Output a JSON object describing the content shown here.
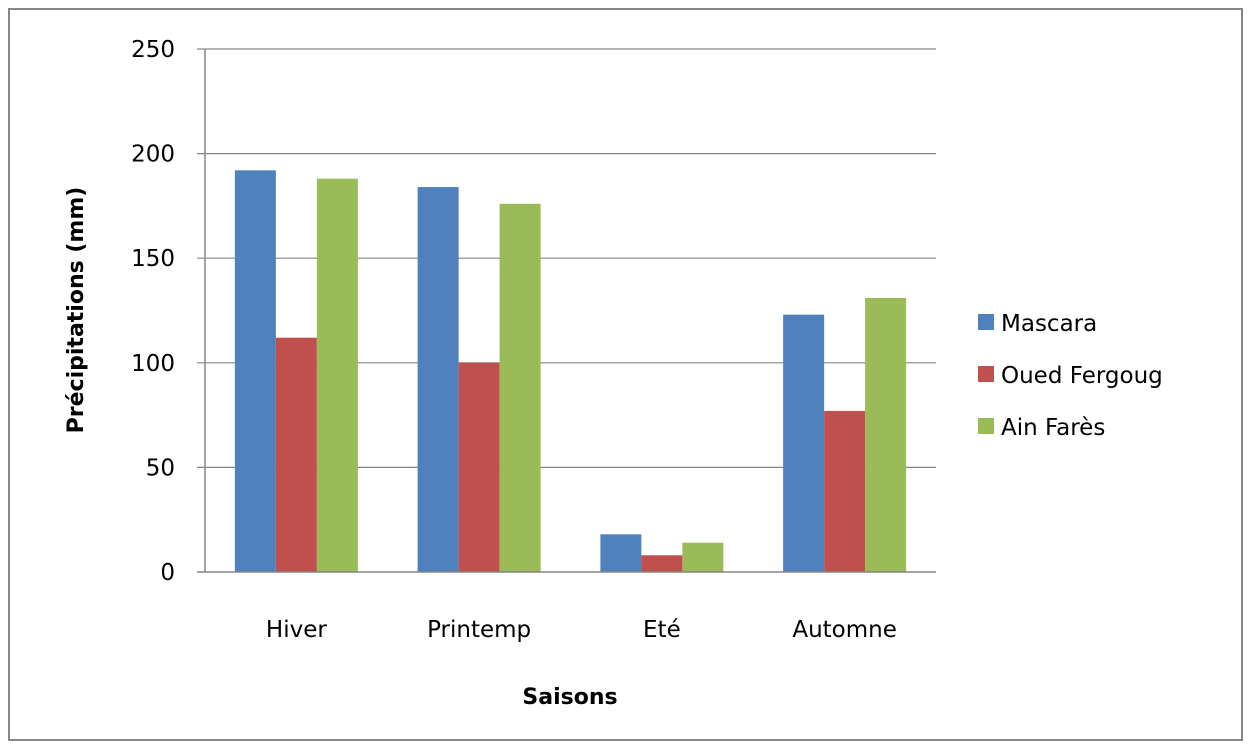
{
  "chart_data": {
    "type": "bar",
    "title": "",
    "xlabel": "Saisons",
    "ylabel": "Précipitations (mm)",
    "categories": [
      "Hiver",
      "Printemp",
      "Eté",
      "Automne"
    ],
    "series": [
      {
        "name": "Mascara",
        "color": "#4F81BD",
        "values": [
          192,
          184,
          18,
          123
        ]
      },
      {
        "name": "Oued Fergoug",
        "color": "#C0504D",
        "values": [
          112,
          100,
          8,
          77
        ]
      },
      {
        "name": "Ain Farès",
        "color": "#9BBB59",
        "values": [
          188,
          176,
          14,
          131
        ]
      }
    ],
    "ylim": [
      0,
      250
    ],
    "yticks": [
      0,
      50,
      100,
      150,
      200,
      250
    ],
    "grid": true,
    "legend_position": "right"
  }
}
